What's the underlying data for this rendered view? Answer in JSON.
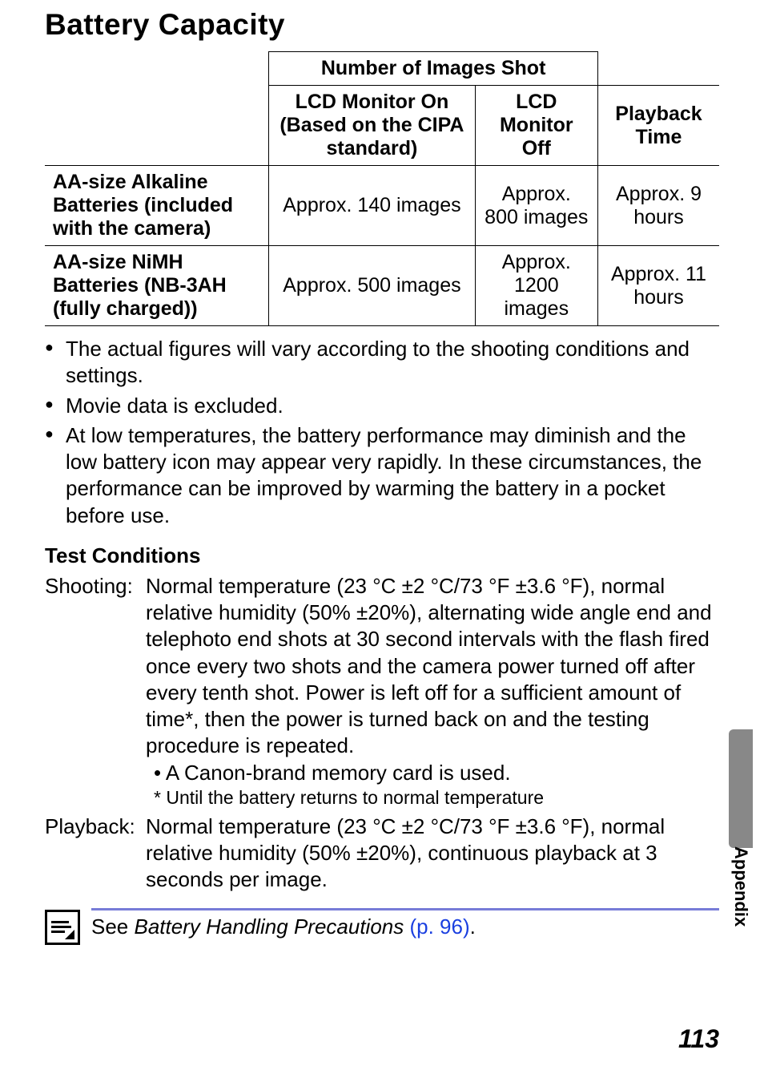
{
  "heading": "Battery Capacity",
  "table": {
    "header_group": "Number of Images Shot",
    "col1": "LCD Monitor On (Based on the CIPA standard)",
    "col2": "LCD Monitor Off",
    "col3": "Playback Time",
    "rows": [
      {
        "label": "AA-size Alkaline Batteries (included with the camera)",
        "c1": "Approx. 140 images",
        "c2": "Approx. 800 images",
        "c3": "Approx. 9 hours"
      },
      {
        "label": "AA-size NiMH Batteries (NB-3AH (fully charged))",
        "c1": "Approx. 500 images",
        "c2": "Approx. 1200 images",
        "c3": "Approx. 11 hours"
      }
    ]
  },
  "bullets": [
    "The actual figures will vary according to the shooting conditions and settings.",
    "Movie data is excluded.",
    "At low temperatures, the battery performance may diminish and the low battery icon may appear very rapidly. In these circumstances, the performance can be improved by warming the battery in a pocket before use."
  ],
  "test_heading": "Test Conditions",
  "shooting": {
    "label": "Shooting:",
    "body": "Normal temperature (23 °C ±2 °C/73 °F ±3.6 °F), normal relative humidity (50% ±20%), alternating wide angle end and telephoto end shots at 30 second intervals with the flash fired once every two shots and the camera power turned off after every tenth shot. Power is left off for a sufficient amount of time*, then the power is turned back on and the testing procedure is repeated.",
    "sub1": "• A Canon-brand memory card is used.",
    "sub2": "* Until the battery returns to normal temperature"
  },
  "playback": {
    "label": "Playback:",
    "body": "Normal temperature (23 °C ±2 °C/73 °F ±3.6 °F), normal relative humidity (50% ±20%), continuous playback at 3 seconds per image."
  },
  "note": {
    "prefix": "See ",
    "italic": "Battery Handling Precautions",
    "link": " (p. 96)",
    "suffix": "."
  },
  "side_label": "Appendix",
  "page_number": "113"
}
